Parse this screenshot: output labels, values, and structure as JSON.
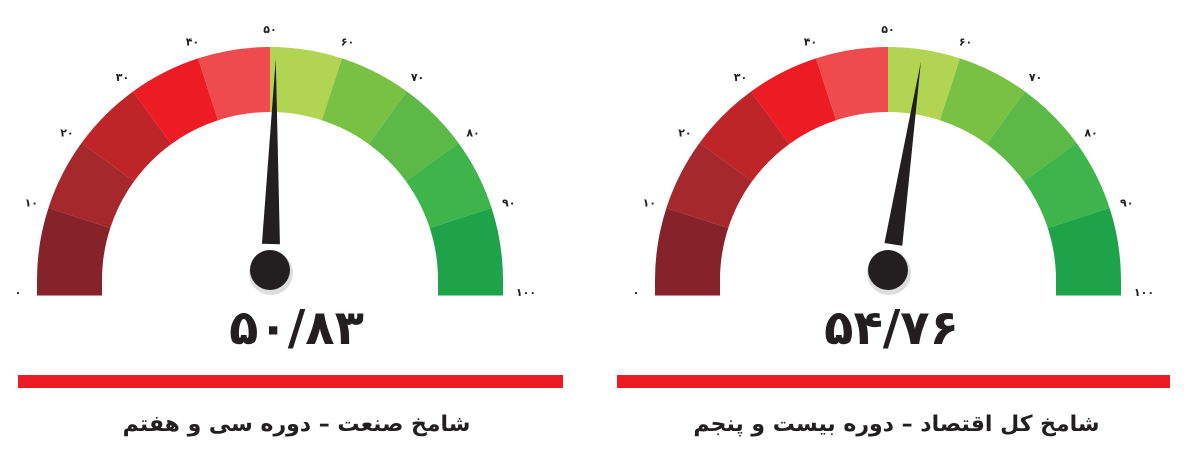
{
  "chart_data": [
    {
      "type": "gauge",
      "range": [
        0,
        100
      ],
      "value": 50.83,
      "value_label": "۵۰/۸۳",
      "title": "شامخ صنعت – دوره سی و هفتم",
      "tick_labels": [
        "۰",
        "۱۰",
        "۲۰",
        "۳۰",
        "۴۰",
        "۵۰",
        "۶۰",
        "۷۰",
        "۸۰",
        "۹۰",
        "۱۰۰"
      ]
    },
    {
      "type": "gauge",
      "range": [
        0,
        100
      ],
      "value": 54.76,
      "value_label": "۵۴/۷۶",
      "title": "شامخ کل اقتصاد – دوره  بیست و پنجم",
      "tick_labels": [
        "۰",
        "۱۰",
        "۲۰",
        "۳۰",
        "۴۰",
        "۵۰",
        "۶۰",
        "۷۰",
        "۸۰",
        "۹۰",
        "۱۰۰"
      ]
    }
  ],
  "colors": {
    "segments": [
      "#85222a",
      "#a4282c",
      "#bf2428",
      "#ed1c24",
      "#ef4b4f",
      "#b2d453",
      "#79c143",
      "#5cb947",
      "#3db54a",
      "#1fa34a"
    ],
    "needle": "#231f20",
    "bar": "#ed1c24"
  }
}
